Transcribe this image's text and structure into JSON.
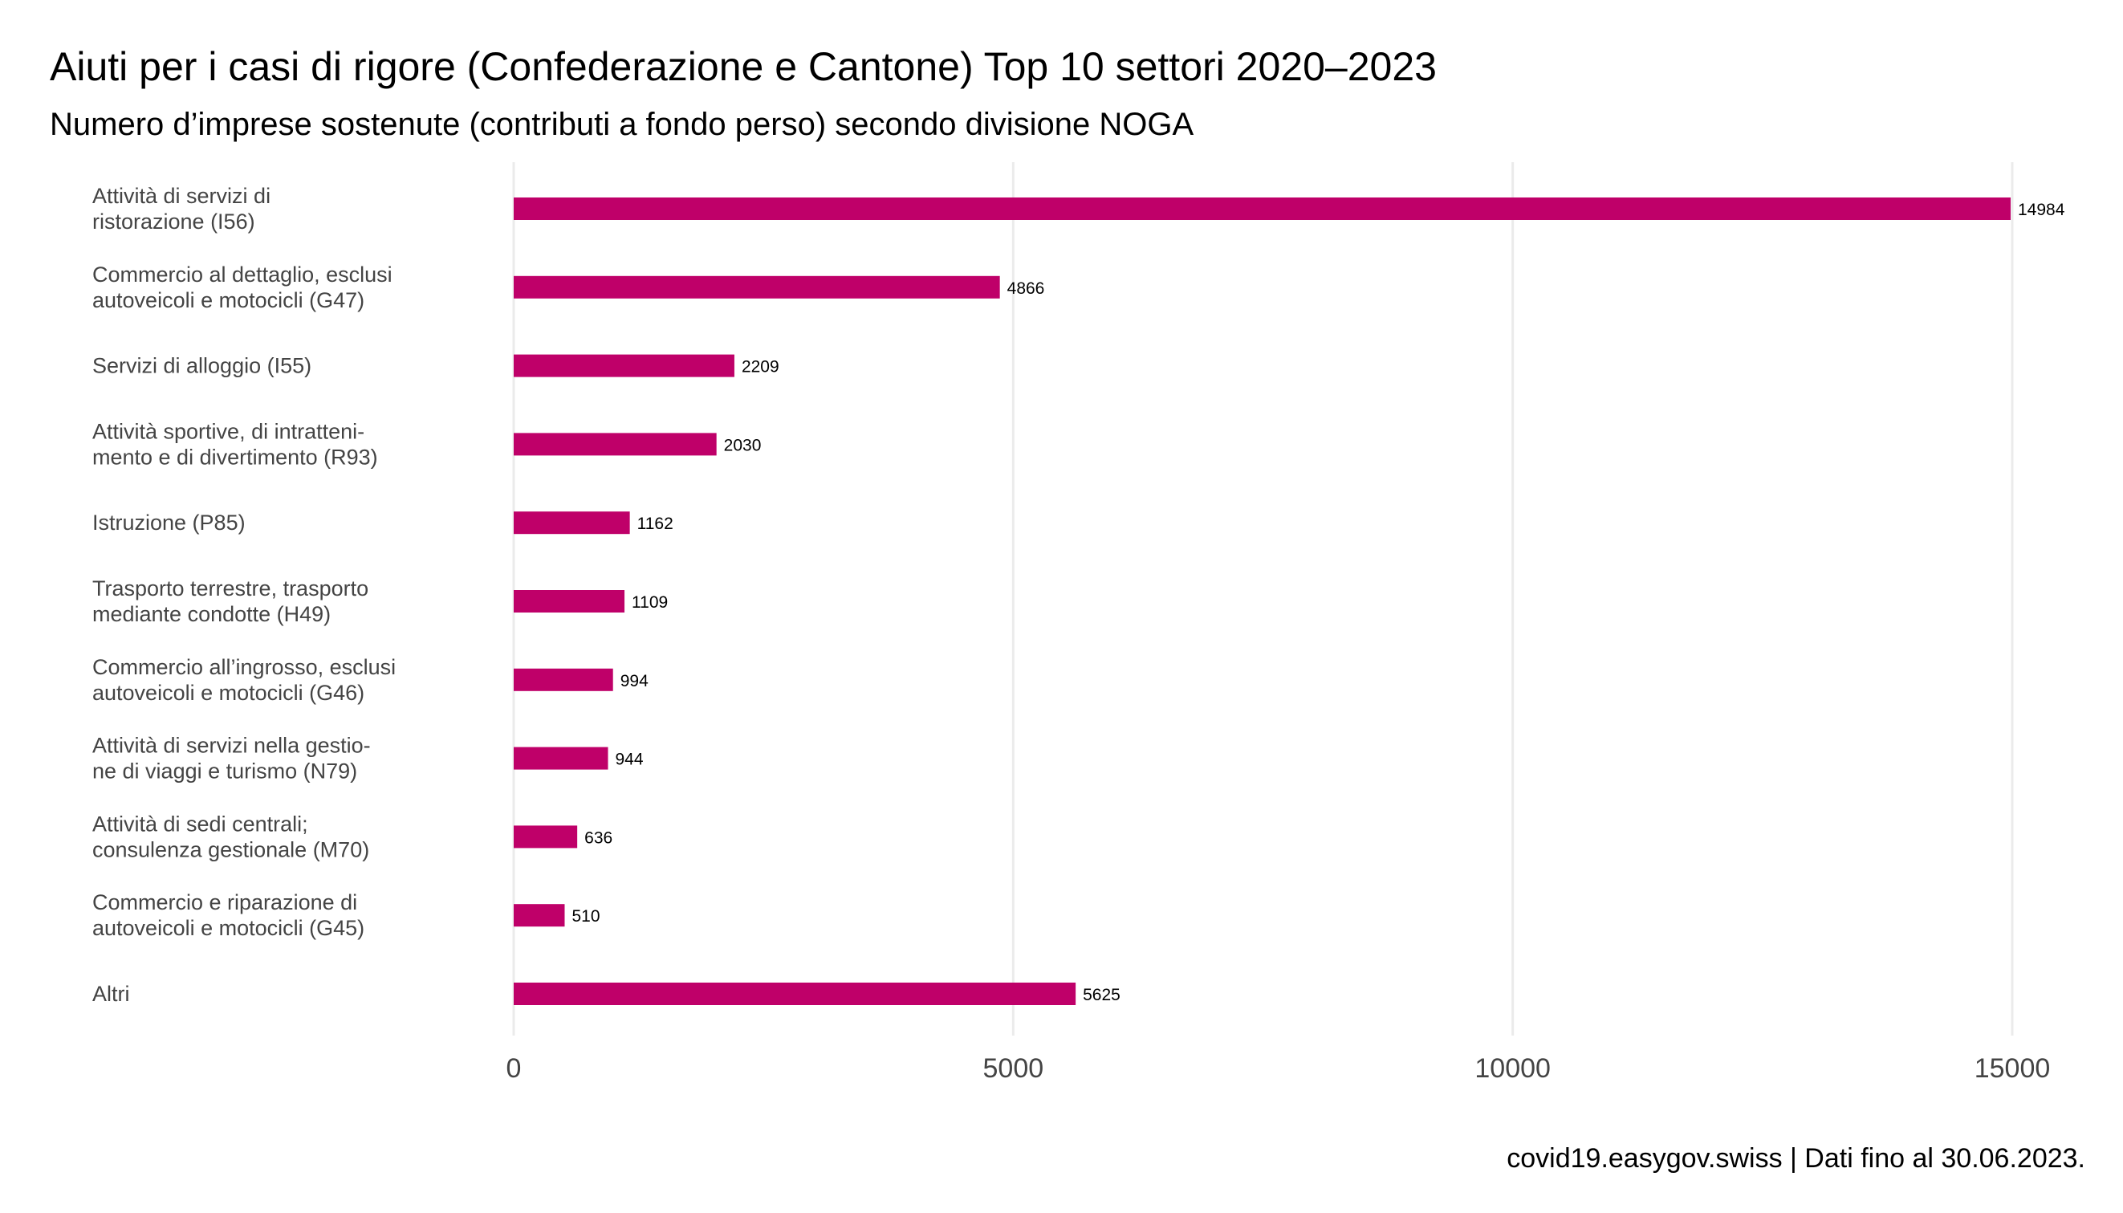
{
  "chart_data": {
    "type": "bar",
    "orientation": "horizontal",
    "title": "Aiuti per i casi di rigore (Confederazione e Cantone) Top 10 settori 2020–2023",
    "subtitle": "Numero d’imprese sostenute (contributi a fondo perso) secondo divisione NOGA",
    "caption": "covid19.easygov.swiss | Dati fino al 30.06.2023.",
    "bar_color": "#bf0069",
    "grid_color": "#ebebeb",
    "xlim": [
      0,
      15000
    ],
    "xticks": [
      0,
      5000,
      10000,
      15000
    ],
    "grid": true,
    "legend": "none",
    "categories": [
      [
        "Attività di servizi di",
        "ristorazione (I56)"
      ],
      [
        "Commercio al dettaglio, esclusi",
        "autoveicoli e motocicli (G47)"
      ],
      [
        "Servizi di alloggio (I55)"
      ],
      [
        "Attività sportive, di intratteni-",
        "mento e di divertimento (R93)"
      ],
      [
        "Istruzione (P85)"
      ],
      [
        "Trasporto terrestre, trasporto",
        "mediante condotte (H49)"
      ],
      [
        "Commercio all’ingrosso, esclusi",
        "autoveicoli e motocicli (G46)"
      ],
      [
        "Attività di servizi nella gestio-",
        "ne di viaggi e turismo (N79)"
      ],
      [
        "Attività di sedi centrali;",
        "consulenza gestionale (M70)"
      ],
      [
        "Commercio e riparazione di",
        "autoveicoli e motocicli (G45)"
      ],
      [
        "Altri"
      ]
    ],
    "values": [
      14984,
      4866,
      2209,
      2030,
      1162,
      1109,
      994,
      944,
      636,
      510,
      5625
    ]
  }
}
